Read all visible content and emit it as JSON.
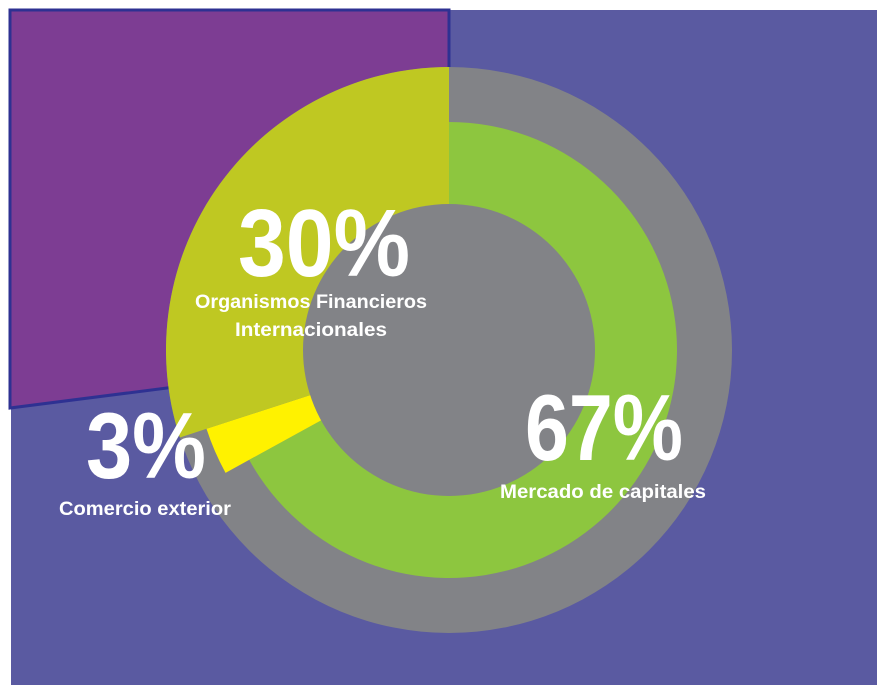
{
  "chart_data": {
    "type": "pie",
    "categories": [
      "Mercado de capitales",
      "Comercio exterior",
      "Organismos Financieros Internacionales"
    ],
    "values": [
      67,
      3,
      30
    ],
    "value_labels": [
      "67%",
      "3%",
      "30%"
    ],
    "label_lines": [
      [
        "Mercado de capitales"
      ],
      [
        "Comercio exterior"
      ],
      [
        "Organismos Financieros",
        "Internacionales"
      ]
    ],
    "colors": {
      "background": "#5a5aa1",
      "outer_ring": "#828387",
      "inner_disc": "#828387",
      "mercado_de_capitales": "#8dc63f",
      "comercio_exterior": "#fff200",
      "organismos_financieros": "#bfc822",
      "highlight_box": "#7d3d93",
      "highlight_border": "#2e3192",
      "text": "#ffffff"
    }
  }
}
